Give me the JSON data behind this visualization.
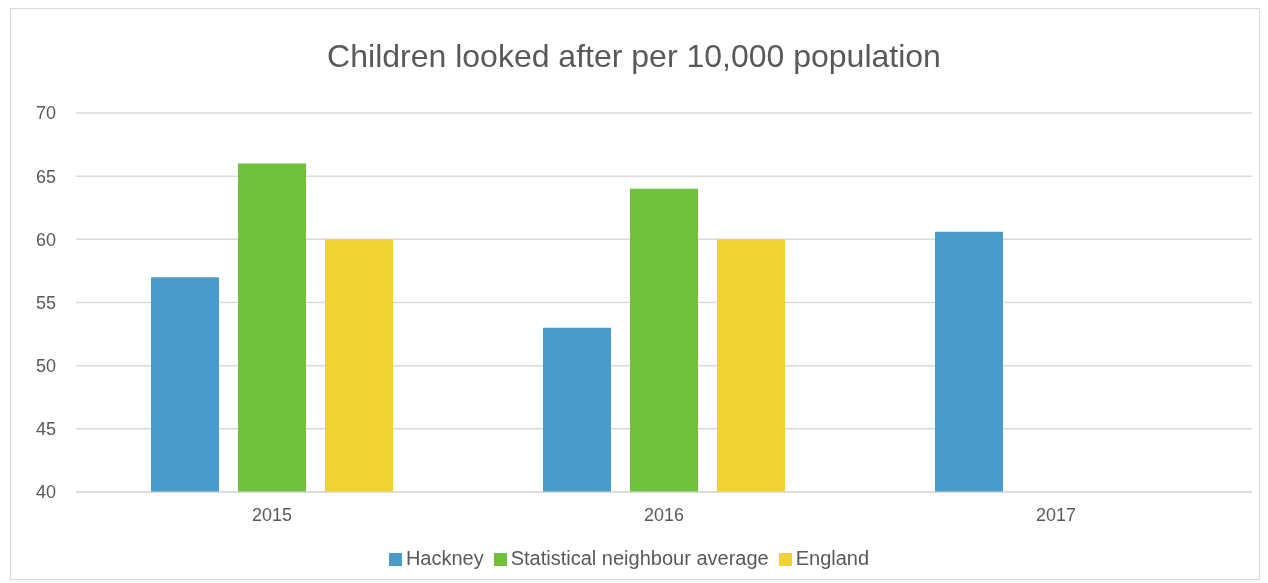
{
  "chart_data": {
    "type": "bar",
    "title": "Children looked after per 10,000 population",
    "categories": [
      "2015",
      "2016",
      "2017"
    ],
    "series": [
      {
        "name": "Hackney",
        "color": "#4a9bcb",
        "values": [
          57,
          53,
          60.6
        ]
      },
      {
        "name": "Statistical neighbour average",
        "color": "#70c03c",
        "values": [
          66,
          64,
          null
        ]
      },
      {
        "name": "England",
        "color": "#f0d232",
        "values": [
          60,
          60,
          null
        ]
      }
    ],
    "ylim": [
      40,
      70
    ],
    "yticks": [
      40,
      45,
      50,
      55,
      60,
      65,
      70
    ],
    "grid": "y",
    "legend": "bottom"
  }
}
